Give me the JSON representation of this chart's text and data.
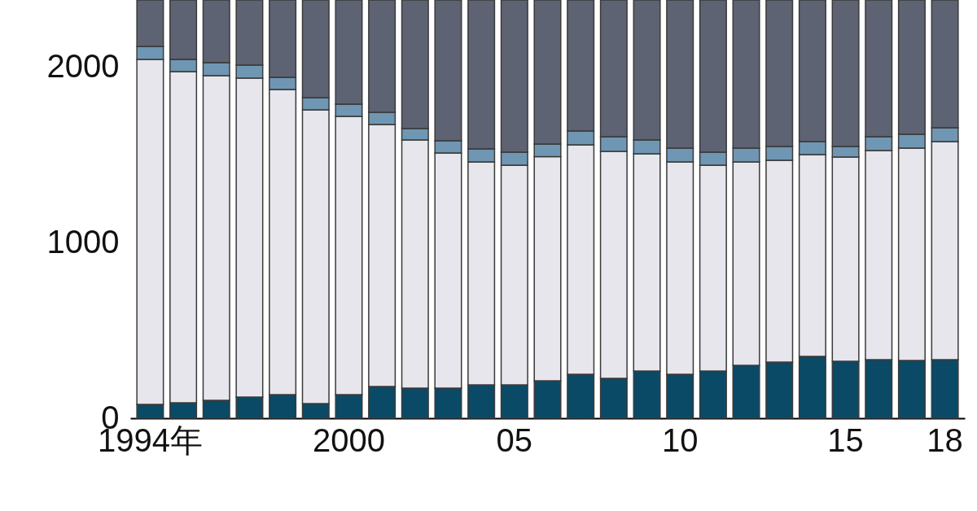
{
  "chart_data": {
    "type": "bar",
    "stacked": true,
    "categories": [
      "1994年",
      null,
      null,
      null,
      null,
      null,
      "2000",
      null,
      null,
      null,
      null,
      "05",
      null,
      null,
      null,
      null,
      "10",
      null,
      null,
      null,
      null,
      "15",
      null,
      null,
      "18"
    ],
    "ylim": [
      0,
      2385
    ],
    "yticks": [
      0,
      1000,
      2000
    ],
    "grid": false,
    "legend": false,
    "series": [
      {
        "color": "#0b4a66",
        "values": [
          79,
          88,
          102,
          121,
          135,
          84,
          135,
          181,
          172,
          172,
          190,
          190,
          213,
          251,
          227,
          269,
          251,
          269,
          302,
          320,
          353,
          325,
          334,
          329,
          334
        ]
      },
      {
        "color": "#e6e6ec",
        "values": [
          1967,
          1889,
          1852,
          1819,
          1740,
          1675,
          1587,
          1494,
          1415,
          1341,
          1272,
          1253,
          1279,
          1308,
          1295,
          1239,
          1211,
          1174,
          1160,
          1151,
          1150,
          1165,
          1193,
          1212,
          1244
        ]
      },
      {
        "color": "#6f97b3",
        "values": [
          74,
          69,
          74,
          74,
          69,
          69,
          69,
          70,
          65,
          69,
          74,
          74,
          72,
          79,
          84,
          79,
          79,
          74,
          79,
          79,
          75,
          60,
          79,
          78,
          79
        ]
      },
      {
        "color": "#5e6373",
        "values": [
          265,
          339,
          357,
          371,
          441,
          557,
          594,
          640,
          733,
          803,
          849,
          868,
          821,
          747,
          779,
          798,
          844,
          868,
          844,
          835,
          807,
          835,
          779,
          766,
          728
        ]
      }
    ]
  }
}
